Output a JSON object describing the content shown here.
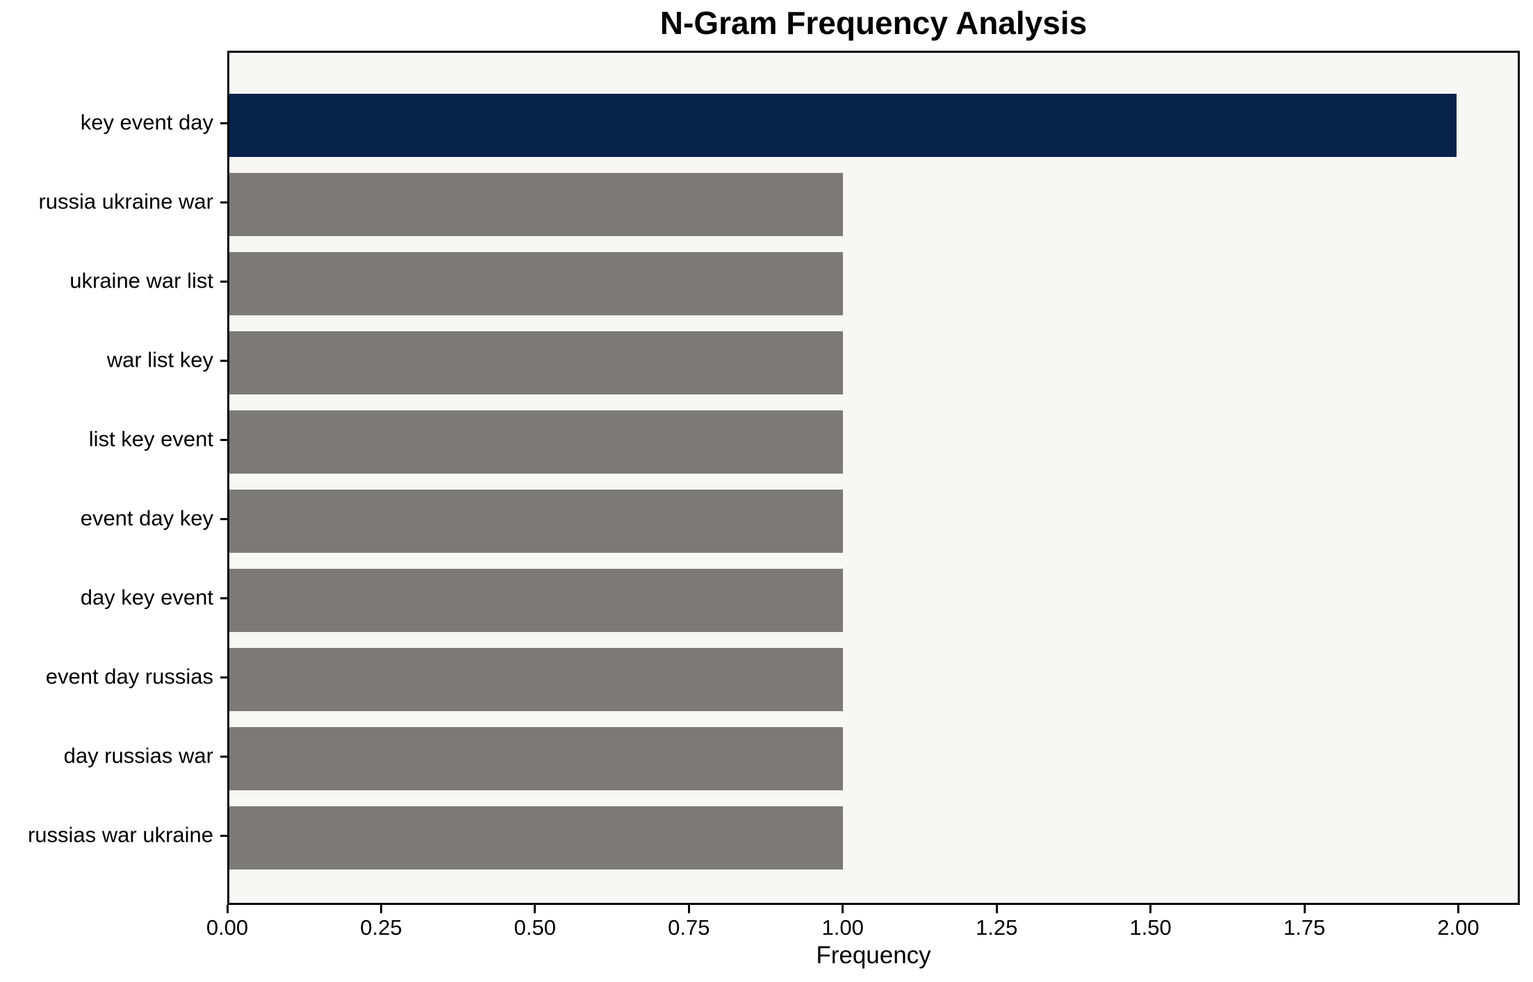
{
  "chart_data": {
    "type": "bar",
    "orientation": "horizontal",
    "title": "N-Gram Frequency Analysis",
    "xlabel": "Frequency",
    "ylabel": "",
    "categories": [
      "key event day",
      "russia ukraine war",
      "ukraine war list",
      "war list key",
      "list key event",
      "event day key",
      "day key event",
      "event day russias",
      "day russias war",
      "russias war ukraine"
    ],
    "values": [
      2,
      1,
      1,
      1,
      1,
      1,
      1,
      1,
      1,
      1
    ],
    "bar_colors": [
      "#08234a",
      "#7b7a78",
      "#7b7a78",
      "#7b7a78",
      "#7b7a78",
      "#7b7a78",
      "#7b7a78",
      "#7b7a78",
      "#7b7a78",
      "#7b7a78"
    ],
    "xlim": [
      0,
      2.1
    ],
    "xticks": [
      0,
      0.25,
      0.5,
      0.75,
      1.0,
      1.25,
      1.5,
      1.75,
      2.0
    ],
    "xtick_labels": [
      "0.00",
      "0.25",
      "0.50",
      "0.75",
      "1.00",
      "1.25",
      "1.50",
      "1.75",
      "2.00"
    ],
    "grid": false,
    "legend": false,
    "colors": {
      "highlight": "#08234a",
      "default_bar": "#7b7a78",
      "plot_background": "#f7f7f6",
      "figure_background": "#ffffff",
      "spine": "#000000",
      "text": "#000000"
    }
  }
}
